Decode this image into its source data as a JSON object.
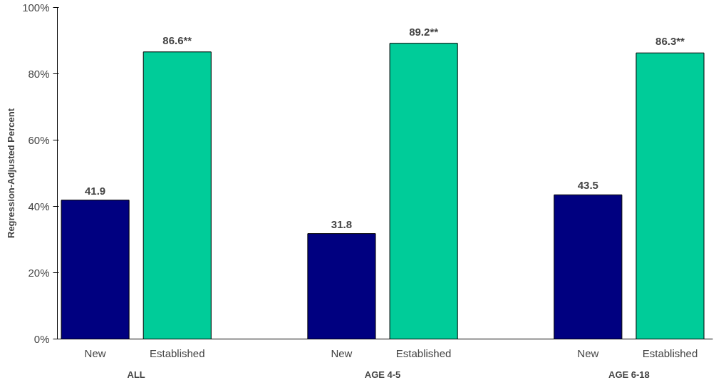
{
  "chart_data": {
    "type": "bar",
    "ylabel": "Regression-Adjusted Percent",
    "categories": [
      "ALL",
      "AGE 4-5",
      "AGE 6-18"
    ],
    "series": [
      {
        "name": "New",
        "color": "#000080",
        "values": [
          41.9,
          31.8,
          43.5
        ],
        "value_labels": [
          "41.9",
          "31.8",
          "43.5"
        ]
      },
      {
        "name": "Established",
        "color": "#00cc99",
        "values": [
          86.6,
          89.2,
          86.3
        ],
        "value_labels": [
          "86.6**",
          "89.2**",
          "86.3**"
        ]
      }
    ],
    "ylim": [
      0,
      100
    ],
    "yticks": [
      {
        "value": 0,
        "label": "0%"
      },
      {
        "value": 20,
        "label": "20%"
      },
      {
        "value": 40,
        "label": "40%"
      },
      {
        "value": 60,
        "label": "60%"
      },
      {
        "value": 80,
        "label": "80%"
      },
      {
        "value": 100,
        "label": "100%"
      }
    ],
    "grid": false
  }
}
